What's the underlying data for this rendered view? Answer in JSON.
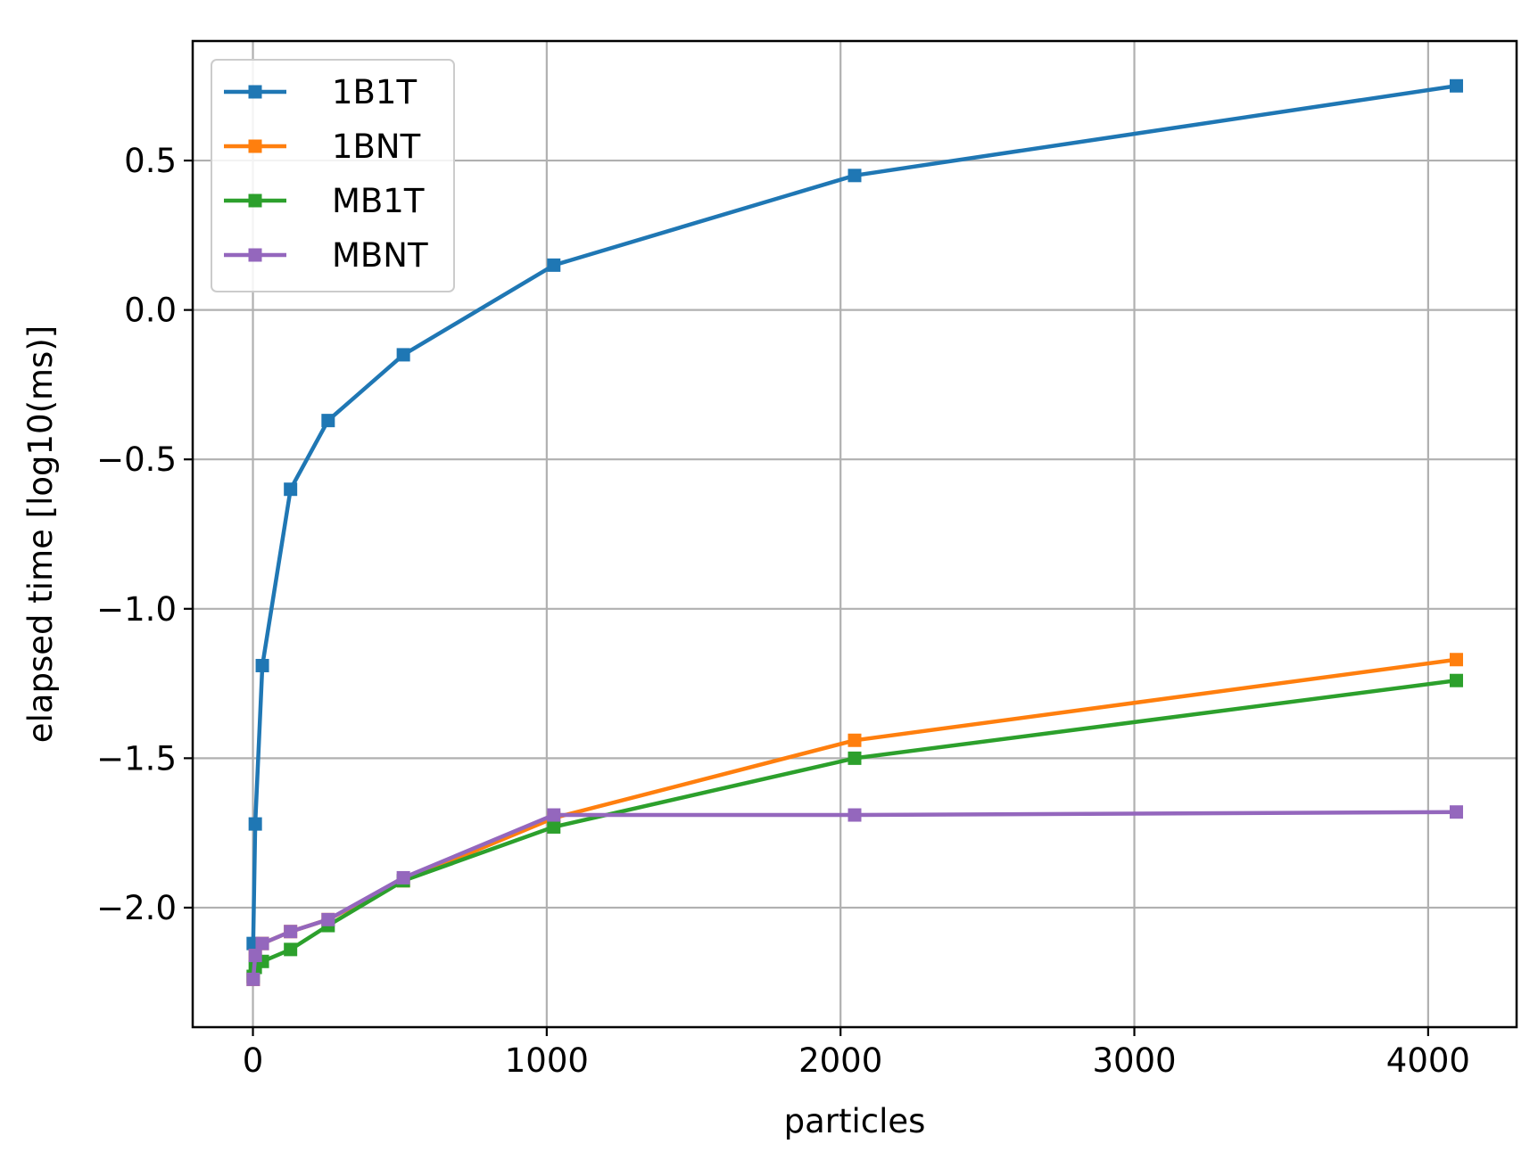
{
  "chart_data": {
    "type": "line",
    "title": "",
    "xlabel": "particles",
    "ylabel": "elapsed time [log10(ms)]",
    "xlim": [
      -205,
      4301
    ],
    "ylim": [
      -2.4,
      0.9
    ],
    "xticks": [
      0,
      1000,
      2000,
      3000,
      4000
    ],
    "yticks": [
      -2.0,
      -1.5,
      -1.0,
      -0.5,
      0.0,
      0.5
    ],
    "xtick_labels": [
      "0",
      "1000",
      "2000",
      "3000",
      "4000"
    ],
    "ytick_labels": [
      "−2.0",
      "−1.5",
      "−1.0",
      "−0.5",
      "0.0",
      "0.5"
    ],
    "grid": true,
    "legend_position": "top-left",
    "marker": "square",
    "series": [
      {
        "name": "1B1T",
        "color": "#1f77b4",
        "x": [
          1,
          8,
          32,
          128,
          256,
          512,
          1024,
          2048,
          4096
        ],
        "y": [
          -2.12,
          -1.72,
          -1.19,
          -0.6,
          -0.37,
          -0.15,
          0.15,
          0.45,
          0.75
        ]
      },
      {
        "name": "1BNT",
        "color": "#ff7f0e",
        "x": [
          1,
          8,
          32,
          128,
          256,
          512,
          1024,
          2048,
          4096
        ],
        "y": [
          -2.24,
          -2.16,
          -2.12,
          -2.08,
          -2.04,
          -1.91,
          -1.7,
          -1.44,
          -1.17
        ]
      },
      {
        "name": "MB1T",
        "color": "#2ca02c",
        "x": [
          1,
          8,
          32,
          128,
          256,
          512,
          1024,
          2048,
          4096
        ],
        "y": [
          -2.23,
          -2.2,
          -2.18,
          -2.14,
          -2.06,
          -1.91,
          -1.73,
          -1.5,
          -1.24
        ]
      },
      {
        "name": "MBNT",
        "color": "#9467bd",
        "x": [
          1,
          8,
          32,
          128,
          256,
          512,
          1024,
          2048,
          4096
        ],
        "y": [
          -2.24,
          -2.16,
          -2.12,
          -2.08,
          -2.04,
          -1.9,
          -1.69,
          -1.69,
          -1.68
        ]
      }
    ]
  }
}
